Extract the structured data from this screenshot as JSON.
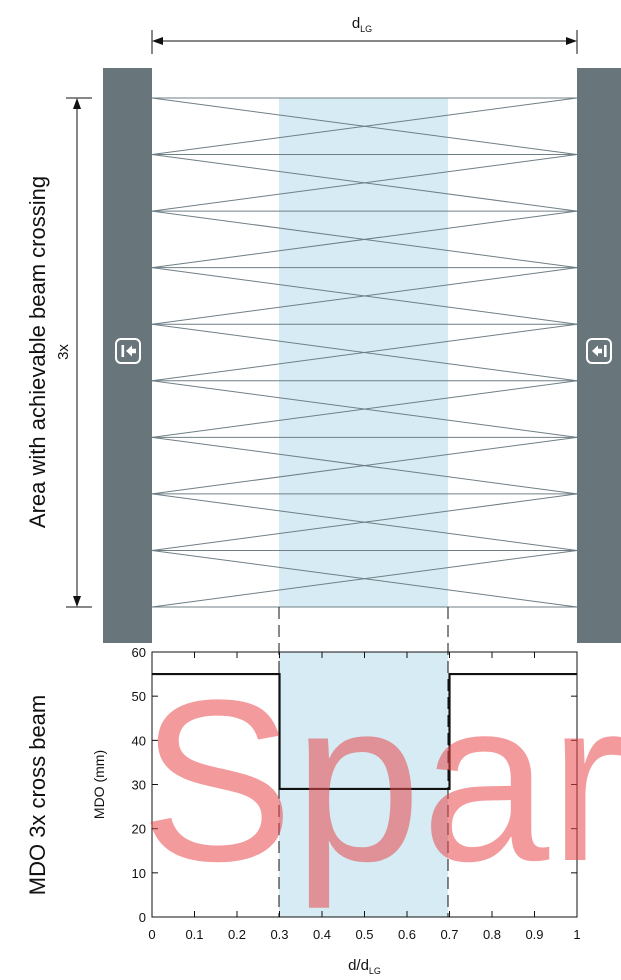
{
  "top_dimension": {
    "label": "d",
    "label_sub": "LG"
  },
  "beam_area": {
    "rotated_label": "Area with achievable beam crossing",
    "height_label": "3x"
  },
  "chart": {
    "rotated_label": "MDO 3x cross beam",
    "ylabel": "MDO (mm)",
    "xlabel": "d/d",
    "xlabel_sub": "LG",
    "x_ticks": [
      "0",
      "0.1",
      "0.2",
      "0.3",
      "0.4",
      "0.5",
      "0.6",
      "0.7",
      "0.8",
      "0.9",
      "1"
    ],
    "y_ticks": [
      "0",
      "10",
      "20",
      "30",
      "40",
      "50",
      "60"
    ]
  },
  "chart_data": {
    "type": "line",
    "xlabel": "d/dLG",
    "ylabel": "MDO (mm)",
    "xlim": [
      0,
      1
    ],
    "ylim": [
      0,
      60
    ],
    "x_ticks": [
      0,
      0.1,
      0.2,
      0.3,
      0.4,
      0.5,
      0.6,
      0.7,
      0.8,
      0.9,
      1
    ],
    "y_ticks": [
      0,
      10,
      20,
      30,
      40,
      50,
      60
    ],
    "shaded_region": [
      0.3,
      0.7
    ],
    "series": [
      {
        "x": [
          0,
          0.3,
          0.3,
          0.7,
          0.7,
          1
        ],
        "y": [
          55,
          55,
          29,
          29,
          55,
          55
        ]
      }
    ]
  },
  "watermark": {
    "text": "Spare"
  },
  "colors": {
    "pillar": "#68767c",
    "shade": "#d6ebf3",
    "beam": "#6f7f86",
    "watermark": "#e8474a"
  },
  "icons": {
    "left_emitter": "arrow-to-bar-icon",
    "right_receiver": "arrow-from-bar-icon"
  }
}
